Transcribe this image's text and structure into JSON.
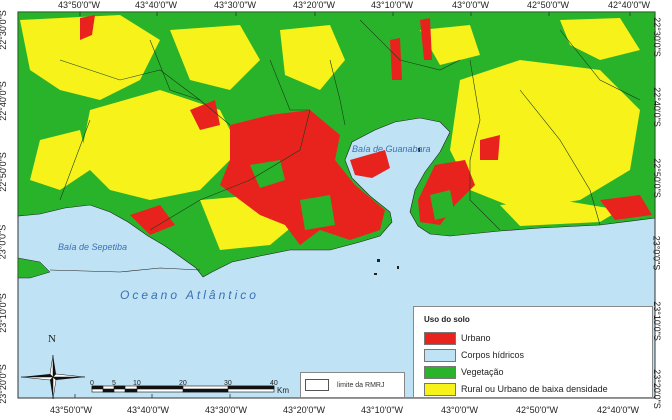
{
  "map": {
    "longitude_labels": [
      "43°50'0\"W",
      "43°40'0\"W",
      "43°30'0\"W",
      "43°20'0\"W",
      "43°10'0\"W",
      "43°0'0\"W",
      "42°50'0\"W",
      "42°40'0\"W"
    ],
    "latitude_labels": [
      "22°30'0\"S",
      "22°40'0\"S",
      "22°50'0\"S",
      "23°0'0\"S",
      "23°10'0\"S",
      "23°20'0\"S"
    ],
    "water_labels": {
      "guanabara": "Baía de Guanabara",
      "sepetiba": "Baía de Sepetiba",
      "ocean": "Oceano Atlântico"
    },
    "north_label": "N",
    "scale": {
      "ticks": [
        "0",
        "5",
        "10",
        "20",
        "30",
        "40"
      ],
      "unit": "Km"
    },
    "boundary_legend": "limite da RMRJ"
  },
  "legend": {
    "title": "Uso do solo",
    "items": [
      {
        "label": "Urbano",
        "color": "#e8231e"
      },
      {
        "label": "Corpos hídricos",
        "color": "#bfe3f5"
      },
      {
        "label": "Vegetação",
        "color": "#29b32a"
      },
      {
        "label": "Rural ou Urbano de baixa densidade",
        "color": "#f7f21a"
      }
    ]
  },
  "colors": {
    "water": "#bfe3f5",
    "urban": "#e8231e",
    "vegetation": "#29b32a",
    "rural": "#f7f21a"
  }
}
